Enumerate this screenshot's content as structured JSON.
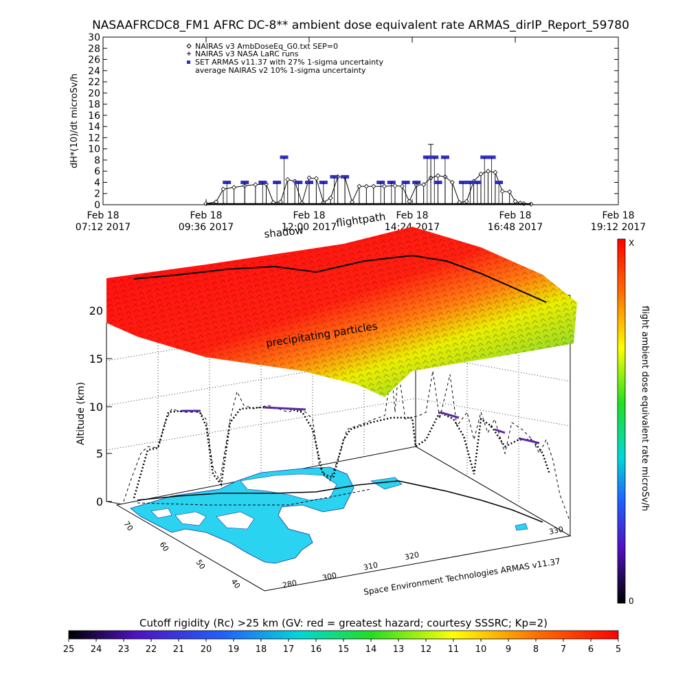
{
  "title": "NASAAFRCDC8_FM1 AFRC DC-8** ambient dose equivalent rate ARMAS_dirIP_Report_59780",
  "top_chart": {
    "ylabel": "dH*(10)/dt microSv/h",
    "y_ticks": [
      "0",
      "2",
      "4",
      "6",
      "8",
      "10",
      "12",
      "14",
      "16",
      "18",
      "20",
      "22",
      "24",
      "26",
      "28",
      "30"
    ],
    "x_ticks": [
      {
        "day": "Feb 18",
        "time": "07:12 2017"
      },
      {
        "day": "Feb 18",
        "time": "09:36 2017"
      },
      {
        "day": "Feb 18",
        "time": "12:00 2017"
      },
      {
        "day": "Feb 18",
        "time": "14:24 2017"
      },
      {
        "day": "Feb 18",
        "time": "16:48 2017"
      },
      {
        "day": "Feb 18",
        "time": "19:12 2017"
      }
    ],
    "legend": [
      "NAIRAS v3 AmbDoseEq_G0.txt SEP=0",
      "NAIRAS v3 NASA LaRC runs",
      "SET ARMAS v11.37 with 27% 1-sigma uncertainty",
      "average NAIRAS v2 10% 1-sigma uncertainty"
    ]
  },
  "chart_data": [
    {
      "type": "line",
      "title": "NASAAFRCDC8_FM1 AFRC DC-8** ambient dose equivalent rate ARMAS_dirIP_Report_59780",
      "xlabel": "",
      "ylabel": "dH*(10)/dt microSv/h",
      "ylim": [
        0,
        30
      ],
      "x_tick_labels": [
        "Feb 18 07:12 2017",
        "Feb 18 09:36 2017",
        "Feb 18 12:00 2017",
        "Feb 18 14:24 2017",
        "Feb 18 16:48 2017",
        "Feb 18 19:12 2017"
      ],
      "grid": false,
      "legend_position": "top-left",
      "series": [
        {
          "name": "NAIRAS v3 AmbDoseEq_G0.txt SEP=0",
          "x": [
            "09:36",
            "09:50",
            "10:00",
            "10:15",
            "10:30",
            "10:45",
            "11:00",
            "11:10",
            "11:20",
            "11:30",
            "11:40",
            "11:50",
            "12:00",
            "12:10",
            "12:20",
            "12:30",
            "12:40",
            "12:50",
            "13:00",
            "13:10",
            "13:20",
            "13:30",
            "13:45",
            "14:00",
            "14:10",
            "14:20",
            "14:30",
            "14:40",
            "14:50",
            "15:00",
            "15:10",
            "15:20",
            "15:30",
            "15:40",
            "15:50",
            "16:00",
            "16:10",
            "16:20",
            "16:30",
            "16:40",
            "16:48",
            "16:55",
            "17:00",
            "17:10"
          ],
          "values": [
            0.2,
            0.5,
            2.8,
            3.1,
            3.4,
            3.6,
            3.7,
            0.4,
            0.5,
            4.5,
            4.2,
            0.3,
            4.8,
            4.7,
            0.4,
            1.2,
            5.0,
            4.9,
            0.5,
            3.3,
            3.3,
            3.3,
            3.3,
            3.4,
            3.3,
            0.6,
            3.5,
            3.6,
            4.8,
            5.2,
            5.0,
            4.0,
            0.4,
            0.6,
            4.2,
            5.5,
            6.0,
            5.8,
            2.4,
            2.3,
            0.6,
            0.3,
            0.2,
            0.1
          ]
        },
        {
          "name": "SET ARMAS v11.37 with 27% 1-sigma uncertainty",
          "x": [
            "10:05",
            "10:30",
            "10:55",
            "11:15",
            "11:25",
            "11:45",
            "12:00",
            "12:20",
            "12:35",
            "12:50",
            "13:40",
            "13:55",
            "14:15",
            "14:30",
            "14:45",
            "14:55",
            "15:00",
            "15:10",
            "15:35",
            "15:45",
            "15:55",
            "16:05",
            "16:15",
            "16:25"
          ],
          "values": [
            4.0,
            4.0,
            4.0,
            4.0,
            8.5,
            4.0,
            4.0,
            4.0,
            5.0,
            5.0,
            4.0,
            4.0,
            4.0,
            4.0,
            8.5,
            8.5,
            4.0,
            8.5,
            4.0,
            4.0,
            4.0,
            8.5,
            8.5,
            4.0
          ]
        }
      ]
    },
    {
      "type": "scatter",
      "title": "",
      "xlabel": "",
      "ylabel": "Altitude (km)",
      "zlim": [
        0,
        22
      ],
      "z_ticks": [
        0,
        5,
        10,
        15,
        20
      ],
      "lon_ticks": [
        280,
        300,
        310,
        320,
        330
      ],
      "lat_ticks": [
        40,
        50,
        60,
        70
      ],
      "annotations": [
        "shadow",
        "flightpath",
        "precipitating particles"
      ],
      "credit": "Space Environment Technologies ARMAS v11.37"
    }
  ],
  "three_d": {
    "ylabel": "Altitude (km)",
    "z_ticks": [
      "0",
      "5",
      "10",
      "15",
      "20"
    ],
    "lon_ticks": [
      "280",
      "300",
      "310",
      "320",
      "330"
    ],
    "lat_ticks": [
      "70",
      "60",
      "50",
      "40"
    ],
    "label_shadow": "shadow",
    "label_flightpath": "flightpath",
    "label_particles": "precipitating particles",
    "credit": "Space Environment Technologies ARMAS v11.37"
  },
  "colorbar_right": {
    "label": "flight ambient dose equivalent rate microSv/h",
    "top": "X",
    "bottom": "0"
  },
  "colorbar_bottom": {
    "title": "Cutoff rigidity (Rc) >25 km (GV: red = greatest hazard; courtesy SSSRC; Kp=2)",
    "ticks": [
      "25",
      "24",
      "23",
      "22",
      "21",
      "20",
      "19",
      "18",
      "17",
      "16",
      "15",
      "14",
      "13",
      "12",
      "11",
      "10",
      "9",
      "8",
      "7",
      "6",
      "5"
    ]
  },
  "colors": {
    "series_black": "#000000",
    "armas_blue": "#3030c0",
    "armas_purple": "#5a2aa0",
    "ocean_cyan": "#2ad4f0",
    "sheet_red": "#ff1010",
    "sheet_yellow": "#e8f000"
  }
}
